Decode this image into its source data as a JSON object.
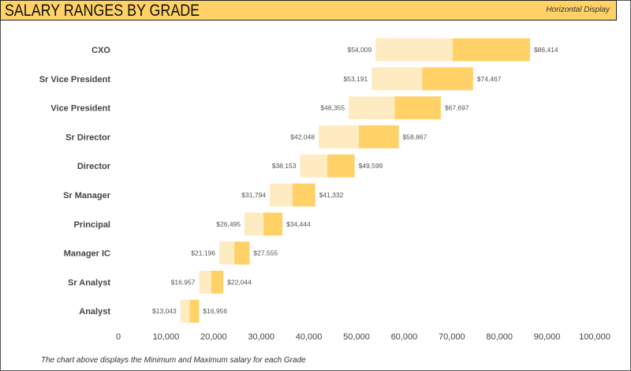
{
  "header": {
    "title": "SALARY RANGES BY GRADE",
    "subtitle": "Horizontal Display"
  },
  "footnote": "The chart above displays the Minimum and Maximum salary for each Grade",
  "colors": {
    "header": "#ffd166",
    "min_segment": "#ffebc2",
    "max_segment": "#ffd166"
  },
  "chart_data": {
    "type": "bar",
    "orientation": "horizontal",
    "categories": [
      "CXO",
      "Sr Vice President",
      "Vice President",
      "Sr Director",
      "Director",
      "Sr Manager",
      "Principal",
      "Manager IC",
      "Sr Analyst",
      "Analyst"
    ],
    "min": [
      54009,
      53191,
      48355,
      42048,
      38153,
      31794,
      26495,
      21196,
      16957,
      13043
    ],
    "max": [
      86414,
      74467,
      67697,
      58867,
      49599,
      41332,
      34444,
      27555,
      22044,
      16956
    ],
    "min_labels": [
      "$54,009",
      "$53,191",
      "$48,355",
      "$42,048",
      "$38,153",
      "$31,794",
      "$26,495",
      "$21,196",
      "$16,957",
      "$13,043"
    ],
    "max_labels": [
      "$86,414",
      "$74,467",
      "$67,697",
      "$58,867",
      "$49,599",
      "$41,332",
      "$34,444",
      "$27,555",
      "$22,044",
      "$16,956"
    ],
    "xlim": [
      0,
      100000
    ],
    "xticks": [
      "0",
      "10,000",
      "20,000",
      "30,000",
      "40,000",
      "50,000",
      "60,000",
      "70,000",
      "80,000",
      "90,000",
      "100,000"
    ],
    "grid": false,
    "legend": "none"
  }
}
